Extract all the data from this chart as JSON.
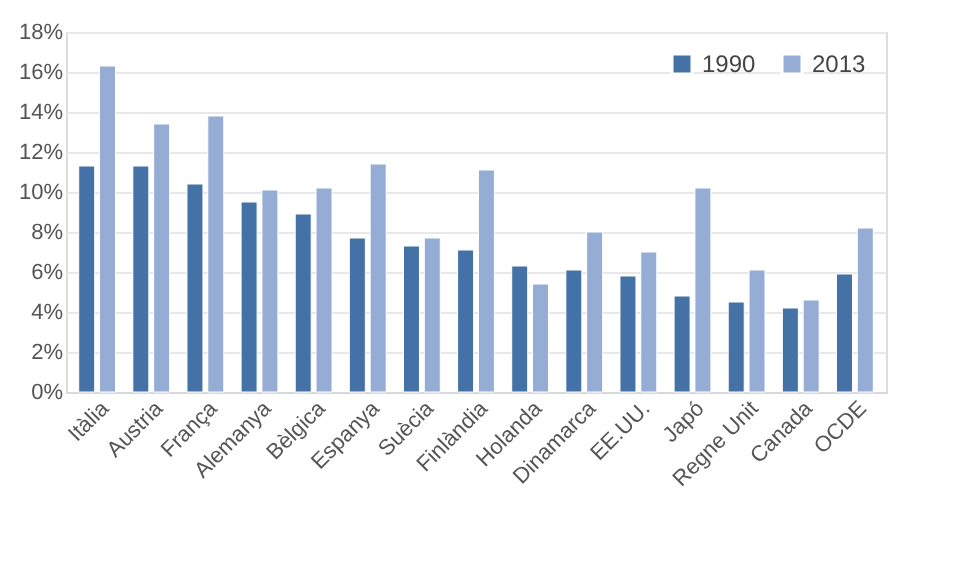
{
  "chart_data": {
    "type": "bar",
    "categories": [
      "Itàlia",
      "Austria",
      "França",
      "Alemanya",
      "Bèlgica",
      "Espanya",
      "Suècia",
      "Finlàndia",
      "Holanda",
      "Dinamarca",
      "EE.UU.",
      "Japó",
      "Regne Unit",
      "Canada",
      "OCDE"
    ],
    "series": [
      {
        "name": "1990",
        "color": "#4472a6",
        "values": [
          11.3,
          11.3,
          10.4,
          9.5,
          8.9,
          7.7,
          7.3,
          7.1,
          6.3,
          6.1,
          5.8,
          4.8,
          4.5,
          4.2,
          5.9
        ]
      },
      {
        "name": "2013",
        "color": "#95acd4",
        "values": [
          16.3,
          13.4,
          13.8,
          10.1,
          10.2,
          11.4,
          7.7,
          11.1,
          5.4,
          8.0,
          7.0,
          10.2,
          6.1,
          4.6,
          8.2
        ]
      }
    ],
    "ylim": [
      0,
      18
    ],
    "yticks": [
      {
        "value": 0,
        "label": "0%"
      },
      {
        "value": 2,
        "label": "2%"
      },
      {
        "value": 4,
        "label": "4%"
      },
      {
        "value": 6,
        "label": "6%"
      },
      {
        "value": 8,
        "label": "8%"
      },
      {
        "value": 10,
        "label": "10%"
      },
      {
        "value": 12,
        "label": "12%"
      },
      {
        "value": 14,
        "label": "14%"
      },
      {
        "value": 16,
        "label": "16%"
      },
      {
        "value": 18,
        "label": "18%"
      }
    ],
    "grid": "y",
    "legend": "top right"
  }
}
